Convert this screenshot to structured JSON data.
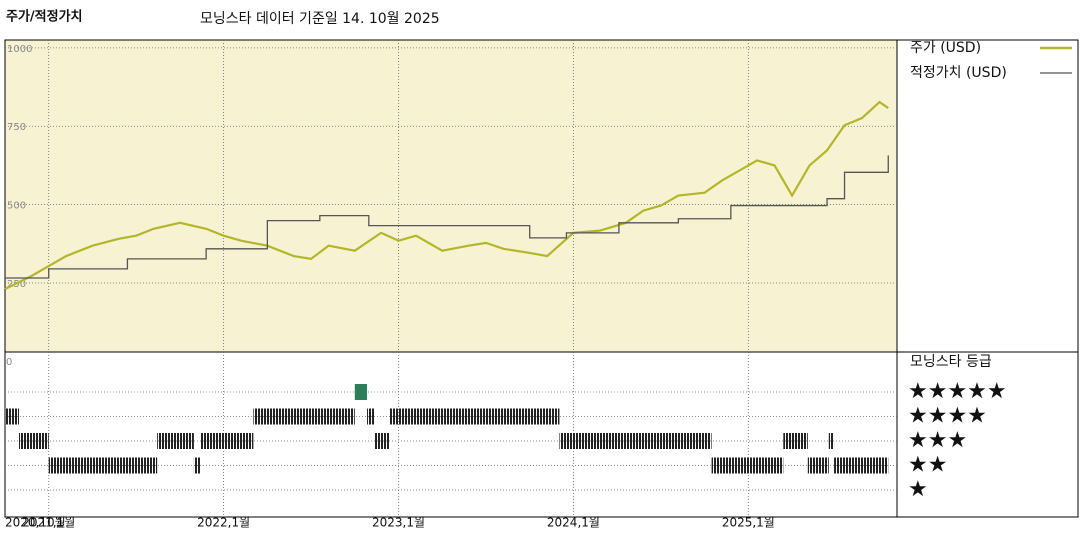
{
  "chart_data": {
    "type": "line",
    "title": "주가/적정가치",
    "subtitle": "모닝스타 데이터 기준일 14. 10월 2025",
    "xlim": [
      2020.75,
      2025.85
    ],
    "xticks": [
      {
        "value": 2020.75,
        "label": "2020,10월"
      },
      {
        "value": 2021,
        "label": "2021,1월"
      },
      {
        "value": 2022,
        "label": "2022,1월"
      },
      {
        "value": 2023,
        "label": "2023,1월"
      },
      {
        "value": 2024,
        "label": "2024,1월"
      },
      {
        "value": 2025,
        "label": "2025,1월"
      }
    ],
    "ylim": [
      30,
      1025
    ],
    "yticks": [
      250,
      500,
      750,
      1000
    ],
    "grid": true,
    "series": [
      {
        "name": "주가 (USD)",
        "color": "#b3b62a",
        "step": false,
        "x": [
          2020.75,
          2020.9,
          2021.0,
          2021.1,
          2021.25,
          2021.4,
          2021.5,
          2021.6,
          2021.75,
          2021.9,
          2022.0,
          2022.1,
          2022.25,
          2022.4,
          2022.5,
          2022.6,
          2022.75,
          2022.9,
          2023.0,
          2023.1,
          2023.25,
          2023.4,
          2023.5,
          2023.6,
          2023.75,
          2023.85,
          2024.0,
          2024.15,
          2024.3,
          2024.4,
          2024.5,
          2024.6,
          2024.75,
          2024.85,
          2024.95,
          2025.05,
          2025.15,
          2025.25,
          2025.35,
          2025.45,
          2025.55,
          2025.65,
          2025.75,
          2025.8
        ],
        "values": [
          231,
          272,
          304,
          336,
          369,
          391,
          401,
          423,
          442,
          423,
          401,
          385,
          369,
          336,
          327,
          369,
          353,
          410,
          385,
          401,
          353,
          369,
          378,
          359,
          346,
          336,
          410,
          417,
          442,
          481,
          497,
          529,
          538,
          577,
          609,
          641,
          625,
          529,
          625,
          673,
          753,
          776,
          827,
          808
        ]
      },
      {
        "name": "적정가치 (USD)",
        "color": "#555555",
        "step": true,
        "x": [
          2020.75,
          2021.0,
          2021.45,
          2021.9,
          2022.25,
          2022.55,
          2022.83,
          2023.75,
          2023.96,
          2024.26,
          2024.6,
          2024.9,
          2025.45,
          2025.55,
          2025.8
        ],
        "values": [
          266,
          295,
          327,
          359,
          449,
          465,
          433,
          394,
          410,
          442,
          455,
          497,
          519,
          603,
          657
        ]
      }
    ],
    "ratings": {
      "title": "모닝스타 등급",
      "axis_label": "0",
      "highlight_color": "#2e7d5b",
      "yticks": [
        {
          "value": 5,
          "label": "★★★★★"
        },
        {
          "value": 4,
          "label": "★★★★"
        },
        {
          "value": 3,
          "label": "★★★"
        },
        {
          "value": 2,
          "label": "★★"
        },
        {
          "value": 1,
          "label": "★"
        }
      ],
      "start": [
        2020.75,
        2020.83,
        2021.0,
        2021.62,
        2021.83,
        2021.87,
        2022.17,
        2022.75,
        2022.82,
        2022.86,
        2022.95,
        2023.92,
        2024.79,
        2025.2,
        2025.34,
        2025.46,
        2025.49
      ],
      "end": [
        2020.83,
        2021.0,
        2021.62,
        2021.83,
        2021.87,
        2022.17,
        2022.75,
        2022.82,
        2022.86,
        2022.95,
        2023.92,
        2024.79,
        2025.2,
        2025.34,
        2025.46,
        2025.49,
        2025.8
      ],
      "values": [
        4,
        3,
        2,
        3,
        2,
        3,
        4,
        5,
        4,
        3,
        4,
        3,
        2,
        3,
        2,
        3,
        2
      ]
    }
  }
}
